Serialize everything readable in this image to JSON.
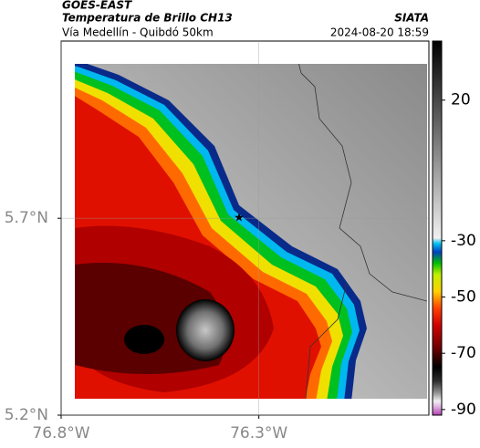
{
  "header": {
    "source": "GOES-EAST",
    "title": "Temperatura de Brillo CH13",
    "org": "SIATA",
    "subtitle": "Vía Medellín - Quibdó 50km",
    "datetime": "2024-08-20 18:59"
  },
  "map": {
    "xlim": [
      -76.8,
      -75.87
    ],
    "ylim": [
      5.2,
      6.15
    ],
    "xticks": [
      {
        "value": -76.8,
        "label": "76.8°W"
      },
      {
        "value": -76.3,
        "label": "76.3°W"
      }
    ],
    "yticks": [
      {
        "value": 5.2,
        "label": "5.2°N"
      },
      {
        "value": 5.7,
        "label": "5.7°N"
      }
    ],
    "grid": true,
    "marker": {
      "lon": -76.35,
      "lat": 5.7
    }
  },
  "colorbar": {
    "lim": [
      -92,
      41
    ],
    "ticks": [
      20,
      -30,
      -50,
      -70,
      -90
    ],
    "colormap": [
      {
        "value": -92,
        "color": "#b040b0"
      },
      {
        "value": -89,
        "color": "#e0b0e0"
      },
      {
        "value": -87,
        "color": "#f0f0f0"
      },
      {
        "value": -84,
        "color": "#909090"
      },
      {
        "value": -80,
        "color": "#303030"
      },
      {
        "value": -75,
        "color": "#000000"
      },
      {
        "value": -68,
        "color": "#700000"
      },
      {
        "value": -60,
        "color": "#d00000"
      },
      {
        "value": -54,
        "color": "#ff4000"
      },
      {
        "value": -48,
        "color": "#ffd000"
      },
      {
        "value": -42,
        "color": "#c0f000"
      },
      {
        "value": -38,
        "color": "#00c000"
      },
      {
        "value": -34,
        "color": "#0040c0"
      },
      {
        "value": -31,
        "color": "#00c0f0"
      },
      {
        "value": -29,
        "color": "#f0f0f0"
      },
      {
        "value": 41,
        "color": "#000000"
      }
    ]
  }
}
